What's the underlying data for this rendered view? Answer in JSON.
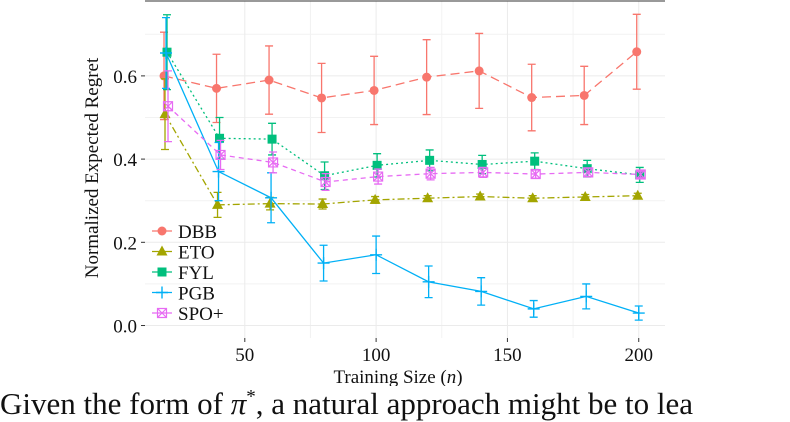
{
  "chart_data": {
    "type": "line",
    "title": "",
    "xlabel": "Training Size (",
    "xlabel_var": "n",
    "xlabel_close": ")",
    "ylabel": "Normalized Expected Regret",
    "xlim": [
      12,
      210
    ],
    "ylim": [
      -0.03,
      0.78
    ],
    "xticks": [
      50,
      100,
      150,
      200
    ],
    "yticks": [
      0.0,
      0.2,
      0.4,
      0.6
    ],
    "xtick_labels": [
      "50",
      "100",
      "150",
      "200"
    ],
    "ytick_labels": [
      "0.0",
      "0.2",
      "0.4",
      "0.6"
    ],
    "grid": true,
    "legend_position": "bottom-left",
    "series": [
      {
        "name": "DBB",
        "color": "#F8766D",
        "marker": "circle",
        "dash": "9,5",
        "offset": -2,
        "x": [
          20,
          40,
          60,
          80,
          100,
          120,
          140,
          160,
          180,
          200
        ],
        "y": [
          0.6,
          0.57,
          0.59,
          0.547,
          0.565,
          0.597,
          0.612,
          0.548,
          0.553,
          0.658
        ],
        "err": [
          0.105,
          0.082,
          0.082,
          0.083,
          0.082,
          0.09,
          0.09,
          0.08,
          0.07,
          0.09
        ]
      },
      {
        "name": "ETO",
        "color": "#A3A500",
        "marker": "triangle",
        "dash": "7,3,2,3",
        "offset": -1,
        "x": [
          20,
          40,
          60,
          80,
          100,
          120,
          140,
          160,
          180,
          200
        ],
        "y": [
          0.508,
          0.29,
          0.293,
          0.292,
          0.302,
          0.306,
          0.31,
          0.306,
          0.309,
          0.312
        ],
        "err": [
          0.085,
          0.03,
          0.015,
          0.012,
          0.008,
          0.006,
          0.006,
          0.006,
          0.006,
          0.006
        ]
      },
      {
        "name": "FYL",
        "color": "#00BF7D",
        "marker": "square",
        "dash": "2,3",
        "offset": 1,
        "x": [
          20,
          40,
          60,
          80,
          100,
          120,
          140,
          160,
          180,
          200
        ],
        "y": [
          0.657,
          0.45,
          0.448,
          0.36,
          0.385,
          0.397,
          0.387,
          0.395,
          0.377,
          0.362
        ],
        "err": [
          0.09,
          0.05,
          0.038,
          0.033,
          0.028,
          0.025,
          0.022,
          0.02,
          0.02,
          0.018
        ]
      },
      {
        "name": "PGB",
        "color": "#00B0F6",
        "marker": "plus",
        "dash": "",
        "offset": 0,
        "x": [
          20,
          40,
          60,
          80,
          100,
          120,
          140,
          160,
          180,
          200
        ],
        "y": [
          0.655,
          0.37,
          0.307,
          0.15,
          0.17,
          0.105,
          0.082,
          0.04,
          0.07,
          0.03
        ],
        "err": [
          0.085,
          0.07,
          0.06,
          0.043,
          0.045,
          0.038,
          0.033,
          0.02,
          0.03,
          0.017
        ]
      },
      {
        "name": "SPO+",
        "color": "#E76BF3",
        "marker": "boxcross",
        "dash": "5,4",
        "offset": 2,
        "x": [
          20,
          40,
          60,
          80,
          100,
          120,
          140,
          160,
          180,
          200
        ],
        "y": [
          0.527,
          0.41,
          0.392,
          0.345,
          0.358,
          0.365,
          0.368,
          0.364,
          0.368,
          0.363
        ],
        "err": [
          0.085,
          0.035,
          0.025,
          0.02,
          0.018,
          0.015,
          0.012,
          0.01,
          0.01,
          0.008
        ]
      }
    ]
  },
  "caption": {
    "before": "Given the form of ",
    "symbol": "π",
    "sup": "*",
    "after": ", a natural approach might be to lea"
  }
}
